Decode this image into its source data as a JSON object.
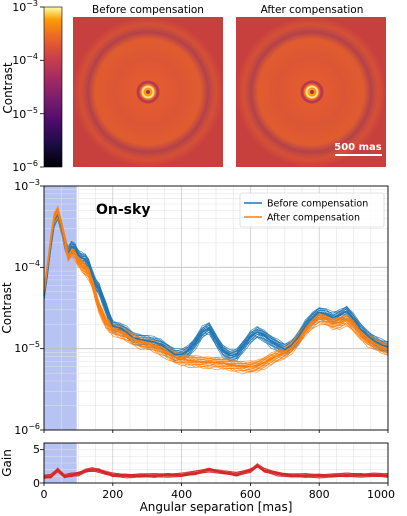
{
  "images": {
    "left_title": "Before compensation",
    "right_title": "After compensation",
    "scale_bar_label": "500 mas",
    "colorbar": {
      "label": "Contrast",
      "ticks": [
        "10^-3",
        "10^-4",
        "10^-5",
        "10^-6"
      ],
      "scale": "log",
      "range": [
        1e-06,
        0.001
      ],
      "colormap": "inferno"
    }
  },
  "chart_data": [
    {
      "type": "line",
      "panel": "contrast",
      "annotation": "On-sky",
      "ylabel": "Contrast",
      "yscale": "log",
      "ylim": [
        1e-06,
        0.001
      ],
      "xlim": [
        0,
        1000
      ],
      "y_ticks": [
        "10^-3",
        "10^-4",
        "10^-5",
        "10^-6"
      ],
      "grid": true,
      "legend_placement": "top-right",
      "shaded_region": {
        "x": [
          0,
          95
        ],
        "color": "#aab8f0"
      },
      "series": [
        {
          "name": "Before compensation",
          "color": "#1f77b4",
          "x": [
            0,
            10,
            20,
            30,
            40,
            50,
            60,
            70,
            80,
            90,
            100,
            110,
            120,
            130,
            140,
            150,
            160,
            170,
            180,
            190,
            200,
            220,
            240,
            260,
            280,
            300,
            320,
            340,
            360,
            380,
            400,
            420,
            440,
            460,
            480,
            500,
            520,
            540,
            560,
            580,
            600,
            620,
            640,
            660,
            680,
            700,
            720,
            740,
            760,
            780,
            800,
            820,
            840,
            860,
            880,
            900,
            920,
            940,
            960,
            980,
            1000
          ],
          "values": [
            4.5e-05,
            9e-05,
            0.0002,
            0.00038,
            0.00045,
            0.00032,
            0.00021,
            0.00015,
            0.00018,
            0.00017,
            0.00014,
            0.00013,
            0.000125,
            0.00011,
            8e-05,
            6.2e-05,
            5.5e-05,
            4.2e-05,
            3.2e-05,
            2.4e-05,
            1.9e-05,
            1.8e-05,
            1.6e-05,
            1.35e-05,
            1.3e-05,
            1.25e-05,
            1.2e-05,
            1.12e-05,
            9.8e-06,
            8.5e-06,
            8.5e-06,
            9.5e-06,
            1.2e-05,
            1.6e-05,
            1.8e-05,
            1.3e-05,
            9.5e-06,
            8.2e-06,
            8.5e-06,
            1.1e-05,
            1.4e-05,
            1.6e-05,
            1.45e-05,
            1.25e-05,
            1.1e-05,
            9.8e-06,
            1.1e-05,
            1.4e-05,
            1.9e-05,
            2.4e-05,
            2.8e-05,
            2.65e-05,
            2.4e-05,
            2.6e-05,
            2.9e-05,
            2.3e-05,
            1.75e-05,
            1.45e-05,
            1.25e-05,
            1.12e-05,
            1.05e-05
          ]
        },
        {
          "name": "After compensation",
          "color": "#ff7f0e",
          "x": [
            0,
            10,
            20,
            30,
            40,
            50,
            60,
            70,
            80,
            90,
            100,
            110,
            120,
            130,
            140,
            150,
            160,
            170,
            180,
            190,
            200,
            220,
            240,
            260,
            280,
            300,
            320,
            340,
            360,
            380,
            400,
            420,
            440,
            460,
            480,
            500,
            520,
            540,
            560,
            580,
            600,
            620,
            640,
            660,
            680,
            700,
            720,
            740,
            760,
            780,
            800,
            820,
            840,
            860,
            880,
            900,
            920,
            940,
            960,
            980,
            1000
          ],
          "values": [
            5e-05,
            0.0001,
            0.00022,
            0.0004,
            0.00048,
            0.00034,
            0.00022,
            0.00014,
            0.00016,
            0.00015,
            0.00012,
            0.000105,
            9.5e-05,
            8.5e-05,
            6.5e-05,
            4.5e-05,
            3.3e-05,
            2.6e-05,
            2.1e-05,
            1.9e-05,
            1.75e-05,
            1.6e-05,
            1.45e-05,
            1.32e-05,
            1.2e-05,
            1.15e-05,
            1.08e-05,
            9.8e-06,
            8.8e-06,
            7.8e-06,
            7.5e-06,
            7.2e-06,
            7e-06,
            6.8e-06,
            6.8e-06,
            6.8e-06,
            6.6e-06,
            6.4e-06,
            6.2e-06,
            6e-06,
            6e-06,
            6.2e-06,
            6.8e-06,
            7.5e-06,
            8.2e-06,
            9e-06,
            1.05e-05,
            1.3e-05,
            1.7e-05,
            2.1e-05,
            2.4e-05,
            2.3e-05,
            2.05e-05,
            2.1e-05,
            2.3e-05,
            1.9e-05,
            1.55e-05,
            1.3e-05,
            1.15e-05,
            1.05e-05,
            9.8e-06
          ]
        }
      ]
    },
    {
      "type": "line",
      "panel": "gain",
      "ylabel": "Gain",
      "xlabel": "Angular separation [mas]",
      "xlim": [
        0,
        1000
      ],
      "ylim": [
        0,
        6
      ],
      "y_ticks": [
        0,
        5
      ],
      "x_ticks": [
        0,
        200,
        400,
        600,
        800,
        1000
      ],
      "grid": true,
      "shaded_region": {
        "x": [
          0,
          95
        ],
        "color": "#aab8f0"
      },
      "series": [
        {
          "color": "#d62728",
          "x": [
            0,
            20,
            40,
            60,
            80,
            100,
            120,
            140,
            160,
            180,
            200,
            240,
            280,
            320,
            360,
            400,
            440,
            480,
            520,
            560,
            600,
            620,
            640,
            680,
            720,
            760,
            800,
            840,
            880,
            920,
            960,
            1000
          ],
          "values": [
            0.9,
            1.0,
            2.0,
            1.0,
            1.2,
            1.4,
            1.8,
            2.0,
            1.9,
            1.5,
            1.2,
            1.1,
            1.1,
            1.1,
            1.2,
            1.2,
            1.5,
            2.0,
            1.6,
            1.3,
            1.9,
            2.6,
            1.9,
            1.4,
            1.1,
            1.1,
            1.1,
            1.1,
            1.2,
            1.2,
            1.2,
            1.1
          ]
        }
      ]
    }
  ]
}
